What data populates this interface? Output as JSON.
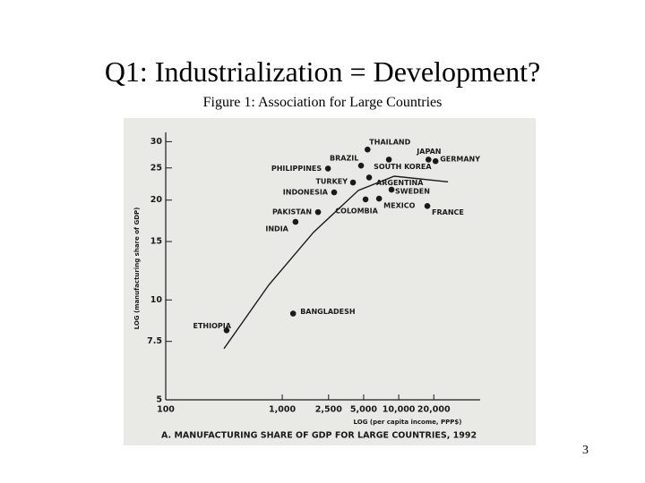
{
  "slide": {
    "title": "Q1: Industrialization = Development?",
    "caption": "Figure 1: Association for Large Countries",
    "page_number": "3"
  },
  "chart_data": {
    "type": "scatter",
    "title": "A. MANUFACTURING SHARE OF GDP FOR LARGE COUNTRIES, 1992",
    "x_label": "LOG (per capita income, PPP$)",
    "y_label": "LOG (manufacturing share of GDP)",
    "log_x": true,
    "log_y": true,
    "xlim": [
      100,
      50000
    ],
    "xticks": [
      100,
      {
        "value": 1000,
        "label": "1,000"
      },
      {
        "value": 2500,
        "label": "2,500"
      },
      {
        "value": 5000,
        "label": "5,000"
      },
      {
        "value": 10000,
        "label": "10,000"
      },
      {
        "value": 20000,
        "label": "20,000"
      }
    ],
    "ylim": [
      5,
      32
    ],
    "yticks": [
      5,
      7.5,
      10,
      15,
      20,
      25,
      30
    ],
    "color": "#1a1a1a",
    "points": {
      "labels": [
        "THAILAND",
        "JAPAN",
        "GERMANY",
        "BRAZIL",
        "SOUTH KOREA",
        "PHILIPPINES",
        "TURKEY",
        "ARGENTINA",
        "INDONESIA",
        "SWEDEN",
        "MEXICO",
        "COLOMBIA",
        "FRANCE",
        "PAKISTAN",
        "INDIA",
        "BANGLADESH",
        "ETHIOPIA"
      ],
      "x": [
        5400,
        18000,
        20700,
        4750,
        8230,
        2470,
        4050,
        5570,
        2790,
        8670,
        6780,
        5190,
        17600,
        2030,
        1300,
        1240,
        333
      ],
      "y": [
        28.4,
        26.5,
        26.2,
        25.4,
        26.5,
        24.9,
        22.6,
        23.4,
        21.1,
        21.5,
        20.2,
        20.1,
        19.2,
        18.4,
        17.2,
        9.1,
        8.1
      ]
    },
    "curve": {
      "x": [
        316,
        767,
        1860,
        4510,
        9160,
        26500
      ],
      "y": [
        7.13,
        11.1,
        16.0,
        21.4,
        23.6,
        22.7
      ]
    }
  }
}
